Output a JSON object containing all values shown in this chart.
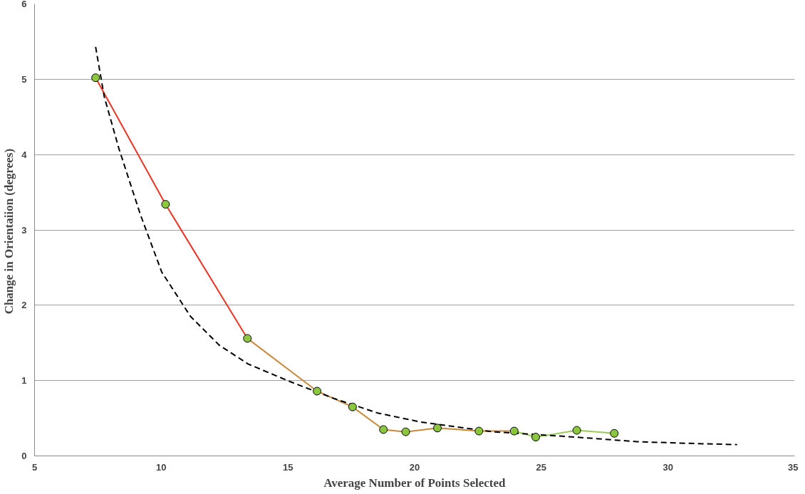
{
  "chart_data": {
    "type": "line",
    "xlabel": "Average Number of Points Selected",
    "ylabel": "Change in Orientaiion  (degrees)",
    "xlim": [
      5,
      35
    ],
    "xticks": [
      5,
      10,
      15,
      20,
      25,
      30,
      35
    ],
    "ylim": [
      0,
      6
    ],
    "yticks": [
      0,
      1,
      2,
      3,
      4,
      5,
      6
    ],
    "grid": "y",
    "series": [
      {
        "color": "#ee3524",
        "x": [
          7.41,
          10.17,
          13.4
        ],
        "values": [
          5.02,
          3.34,
          1.56
        ]
      },
      {
        "color": "#c8893a",
        "x": [
          13.4,
          16.15,
          17.55,
          18.77,
          19.65,
          20.9,
          22.54,
          23.93
        ],
        "values": [
          1.56,
          0.86,
          0.65,
          0.35,
          0.32,
          0.37,
          0.33,
          0.33
        ]
      },
      {
        "color": "#99cc55",
        "x": [
          23.93,
          24.78,
          26.4,
          27.88
        ],
        "values": [
          0.33,
          0.25,
          0.34,
          0.3
        ]
      },
      {
        "color": "#000000",
        "line_style": "dashed",
        "x": [
          7.41,
          7.75,
          8.32,
          9.17,
          10.02,
          11.16,
          12.29,
          13.43,
          15.13,
          16.84,
          18.54,
          20.24,
          23.08,
          25.92,
          28.76,
          30.46,
          32.73
        ],
        "values": [
          5.43,
          4.77,
          4.09,
          3.21,
          2.44,
          1.85,
          1.47,
          1.22,
          0.98,
          0.76,
          0.57,
          0.45,
          0.32,
          0.26,
          0.19,
          0.17,
          0.15
        ]
      },
      {
        "type": "scatter",
        "color": "#8cc63f",
        "marker": "circle",
        "x": [
          7.41,
          10.17,
          13.4,
          16.15,
          17.55,
          18.77,
          19.65,
          20.9,
          22.54,
          23.93,
          24.78,
          26.4,
          27.88
        ],
        "values": [
          5.02,
          3.34,
          1.56,
          0.86,
          0.65,
          0.35,
          0.32,
          0.37,
          0.33,
          0.33,
          0.25,
          0.34,
          0.3
        ]
      }
    ]
  }
}
